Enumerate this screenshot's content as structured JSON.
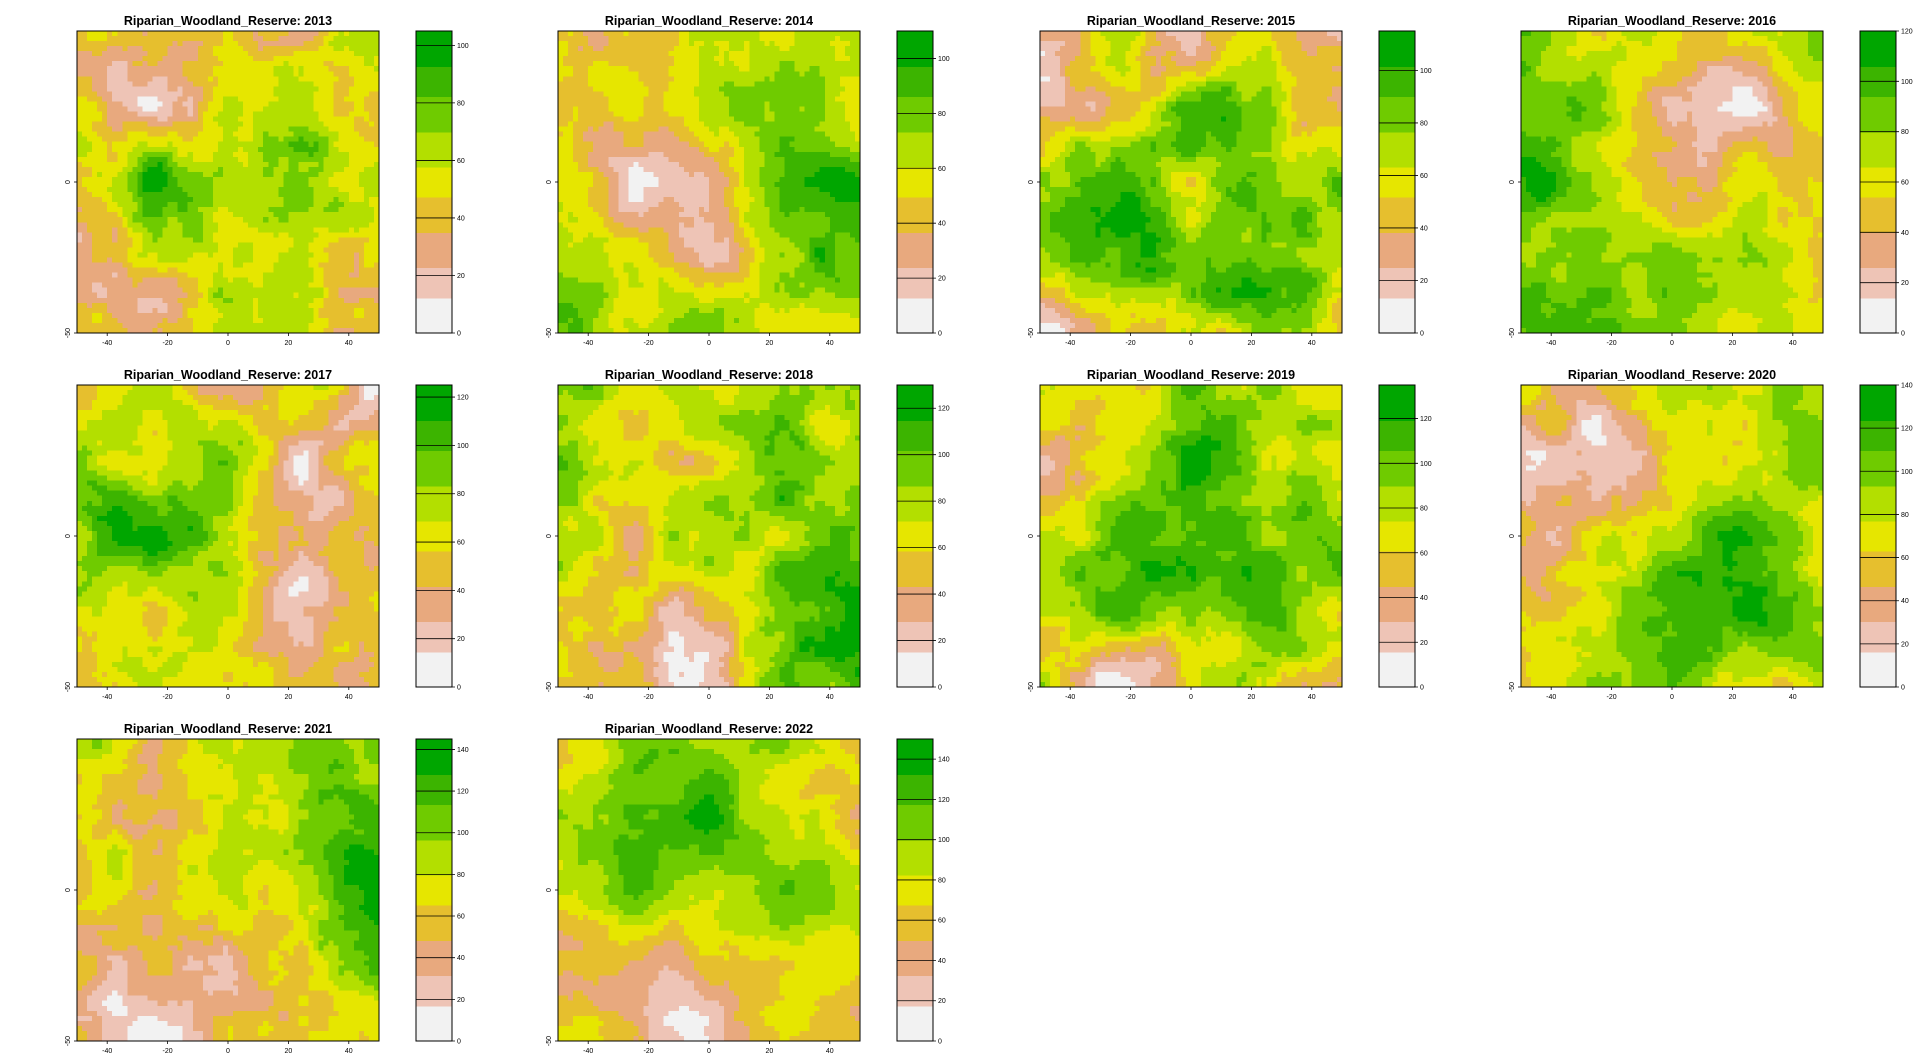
{
  "palette": [
    "#F2F2F2",
    "#EEC4B6",
    "#E8A97E",
    "#E6BF2E",
    "#E6E600",
    "#B3DF00",
    "#6FCB00",
    "#3CB400",
    "#00A600"
  ],
  "chart_data": [
    {
      "type": "heatmap",
      "title": "Riparian_Woodland_Reserve: 2013",
      "xlim": [
        -50,
        50
      ],
      "ylim": [
        -50,
        50
      ],
      "x_ticks": [
        -40,
        -20,
        0,
        20,
        40
      ],
      "y_ticks": [
        -50,
        0
      ],
      "zlim": [
        0,
        105
      ],
      "colorbar_ticks": [
        0,
        20,
        40,
        60,
        80,
        100
      ],
      "seed": 11,
      "bias": -0.1,
      "layers": [
        {
          "cx": 0.25,
          "cy": 0.55,
          "r": 0.3,
          "a": 0.35
        },
        {
          "cx": 0.7,
          "cy": 0.8,
          "r": 0.25,
          "a": 0.3
        },
        {
          "cx": 0.85,
          "cy": 0.25,
          "r": 0.2,
          "a": 0.2
        }
      ]
    },
    {
      "type": "heatmap",
      "title": "Riparian_Woodland_Reserve: 2014",
      "xlim": [
        -50,
        50
      ],
      "ylim": [
        -50,
        50
      ],
      "x_ticks": [
        -40,
        -20,
        0,
        20,
        40
      ],
      "y_ticks": [
        -50,
        0
      ],
      "zlim": [
        0,
        110
      ],
      "colorbar_ticks": [
        0,
        20,
        40,
        60,
        80,
        100
      ],
      "seed": 23,
      "bias": 0.1,
      "layers": [
        {
          "cx": 0.38,
          "cy": 0.55,
          "r": 0.25,
          "a": -0.45
        },
        {
          "cx": 0.92,
          "cy": 0.55,
          "r": 0.25,
          "a": 0.35
        },
        {
          "cx": 0.15,
          "cy": 0.9,
          "r": 0.25,
          "a": 0.2
        }
      ]
    },
    {
      "type": "heatmap",
      "title": "Riparian_Woodland_Reserve: 2015",
      "xlim": [
        -50,
        50
      ],
      "ylim": [
        -50,
        50
      ],
      "x_ticks": [
        -40,
        -20,
        0,
        20,
        40
      ],
      "y_ticks": [
        -50,
        0
      ],
      "zlim": [
        0,
        115
      ],
      "colorbar_ticks": [
        0,
        20,
        40,
        60,
        80,
        100
      ],
      "seed": 37,
      "bias": 0.05,
      "layers": [
        {
          "cx": 0.35,
          "cy": 0.5,
          "r": 0.28,
          "a": 0.4
        },
        {
          "cx": 0.7,
          "cy": 0.85,
          "r": 0.2,
          "a": 0.35
        },
        {
          "cx": 0.1,
          "cy": 0.15,
          "r": 0.2,
          "a": -0.25
        }
      ]
    },
    {
      "type": "heatmap",
      "title": "Riparian_Woodland_Reserve: 2016",
      "xlim": [
        -50,
        50
      ],
      "ylim": [
        -50,
        50
      ],
      "x_ticks": [
        -40,
        -20,
        0,
        20,
        40
      ],
      "y_ticks": [
        -50,
        0
      ],
      "zlim": [
        0,
        120
      ],
      "colorbar_ticks": [
        0,
        20,
        40,
        60,
        80,
        100,
        120
      ],
      "seed": 41,
      "bias": 0.05,
      "layers": [
        {
          "cx": 0.6,
          "cy": 0.4,
          "r": 0.3,
          "a": -0.55
        },
        {
          "cx": 0.2,
          "cy": 0.9,
          "r": 0.35,
          "a": 0.35
        },
        {
          "cx": 0.05,
          "cy": 0.4,
          "r": 0.15,
          "a": 0.2
        }
      ]
    },
    {
      "type": "heatmap",
      "title": "Riparian_Woodland_Reserve: 2017",
      "xlim": [
        -50,
        50
      ],
      "ylim": [
        -50,
        50
      ],
      "x_ticks": [
        -40,
        -20,
        0,
        20,
        40
      ],
      "y_ticks": [
        -50,
        0
      ],
      "zlim": [
        0,
        125
      ],
      "colorbar_ticks": [
        0,
        20,
        40,
        60,
        80,
        100,
        120
      ],
      "seed": 53,
      "bias": 0.05,
      "layers": [
        {
          "cx": 0.3,
          "cy": 0.45,
          "r": 0.32,
          "a": 0.4
        },
        {
          "cx": 0.78,
          "cy": 0.4,
          "r": 0.25,
          "a": -0.45
        },
        {
          "cx": 0.45,
          "cy": 0.95,
          "r": 0.3,
          "a": -0.15
        }
      ]
    },
    {
      "type": "heatmap",
      "title": "Riparian_Woodland_Reserve: 2018",
      "xlim": [
        -50,
        50
      ],
      "ylim": [
        -50,
        50
      ],
      "x_ticks": [
        -40,
        -20,
        0,
        20,
        40
      ],
      "y_ticks": [
        -50,
        0
      ],
      "zlim": [
        0,
        130
      ],
      "colorbar_ticks": [
        0,
        20,
        40,
        60,
        80,
        100,
        120
      ],
      "seed": 67,
      "bias": 0.1,
      "layers": [
        {
          "cx": 0.95,
          "cy": 0.7,
          "r": 0.25,
          "a": 0.35
        },
        {
          "cx": 0.35,
          "cy": 0.85,
          "r": 0.28,
          "a": -0.35
        },
        {
          "cx": 0.25,
          "cy": 0.15,
          "r": 0.2,
          "a": -0.2
        }
      ]
    },
    {
      "type": "heatmap",
      "title": "Riparian_Woodland_Reserve: 2019",
      "xlim": [
        -50,
        50
      ],
      "ylim": [
        -50,
        50
      ],
      "x_ticks": [
        -40,
        -20,
        0,
        20,
        40
      ],
      "y_ticks": [
        -50,
        0
      ],
      "zlim": [
        0,
        135
      ],
      "colorbar_ticks": [
        0,
        20,
        40,
        60,
        80,
        100,
        120
      ],
      "seed": 71,
      "bias": -0.1,
      "layers": [
        {
          "cx": 0.5,
          "cy": 0.45,
          "r": 0.4,
          "a": 0.45
        },
        {
          "cx": 0.05,
          "cy": 0.4,
          "r": 0.15,
          "a": -0.3
        },
        {
          "cx": 0.3,
          "cy": 0.95,
          "r": 0.2,
          "a": -0.25
        }
      ]
    },
    {
      "type": "heatmap",
      "title": "Riparian_Woodland_Reserve: 2020",
      "xlim": [
        -50,
        50
      ],
      "ylim": [
        -50,
        50
      ],
      "x_ticks": [
        -40,
        -20,
        0,
        20,
        40
      ],
      "y_ticks": [
        -50,
        0
      ],
      "zlim": [
        0,
        140
      ],
      "colorbar_ticks": [
        0,
        20,
        40,
        60,
        80,
        100,
        120,
        140
      ],
      "seed": 83,
      "bias": 0.05,
      "layers": [
        {
          "cx": 0.7,
          "cy": 0.65,
          "r": 0.35,
          "a": 0.4
        },
        {
          "cx": 0.2,
          "cy": 0.35,
          "r": 0.25,
          "a": -0.4
        },
        {
          "cx": 0.05,
          "cy": 0.65,
          "r": 0.1,
          "a": -0.25
        }
      ]
    },
    {
      "type": "heatmap",
      "title": "Riparian_Woodland_Reserve: 2021",
      "xlim": [
        -50,
        50
      ],
      "ylim": [
        -50,
        50
      ],
      "x_ticks": [
        -40,
        -20,
        0,
        20,
        40
      ],
      "y_ticks": [
        -50,
        0
      ],
      "zlim": [
        0,
        145
      ],
      "colorbar_ticks": [
        0,
        20,
        40,
        60,
        80,
        100,
        120,
        140
      ],
      "seed": 97,
      "bias": 0.12,
      "layers": [
        {
          "cx": 0.92,
          "cy": 0.35,
          "r": 0.22,
          "a": 0.5
        },
        {
          "cx": 0.25,
          "cy": 0.85,
          "r": 0.35,
          "a": -0.4
        },
        {
          "cx": 0.5,
          "cy": 0.5,
          "r": 0.3,
          "a": -0.1
        }
      ]
    },
    {
      "type": "heatmap",
      "title": "Riparian_Woodland_Reserve: 2022",
      "xlim": [
        -50,
        50
      ],
      "ylim": [
        -50,
        50
      ],
      "x_ticks": [
        -40,
        -20,
        0,
        20,
        40
      ],
      "y_ticks": [
        -50,
        0
      ],
      "zlim": [
        0,
        150
      ],
      "colorbar_ticks": [
        0,
        20,
        40,
        60,
        80,
        100,
        120,
        140
      ],
      "seed": 101,
      "bias": -0.1,
      "layers": [
        {
          "cx": 0.4,
          "cy": 0.3,
          "r": 0.35,
          "a": 0.45
        },
        {
          "cx": 0.45,
          "cy": 0.85,
          "r": 0.2,
          "a": -0.35
        },
        {
          "cx": 0.9,
          "cy": 0.7,
          "r": 0.2,
          "a": 0.25
        }
      ]
    }
  ]
}
